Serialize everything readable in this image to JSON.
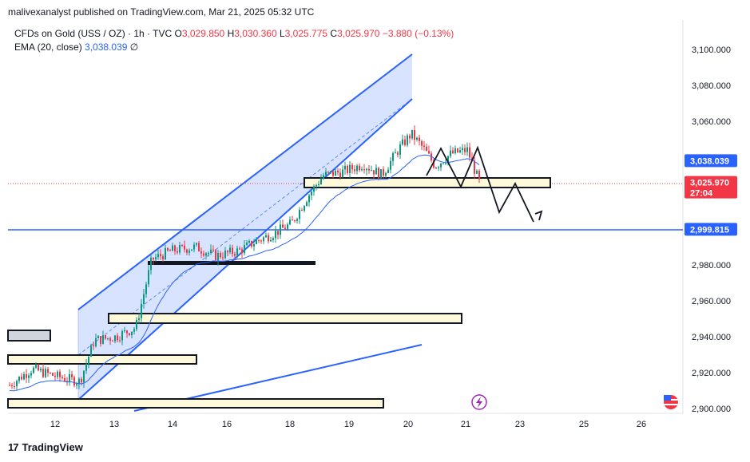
{
  "header": {
    "text": "malivexanalyst published on TradingView.com, Mar 21, 2025 05:32 UTC"
  },
  "legend": {
    "symbol": "CFDs on Gold (USS / OZ) · 1h · TVC",
    "open_label": "O",
    "open": "3,029.850",
    "high_label": "H",
    "high": "3,030.360",
    "low_label": "L",
    "low": "3,025.775",
    "close_label": "C",
    "close": "3,025.970",
    "change": "−3.880 (−0.13%)",
    "ema_label": "EMA (20, close)",
    "ema_value": "3,038.039",
    "ema_extra": "∅"
  },
  "footer": {
    "brand": "TradingView"
  },
  "colors": {
    "up": "#089981",
    "down": "#f23645",
    "ema": "#2962ff",
    "channel": "#2962ff",
    "zone_fill": "#fff9db",
    "zone_border": "#131722"
  },
  "chart_data": {
    "type": "candlestick",
    "title": "CFDs on Gold (USS / OZ) · 1h · TVC",
    "y_ticks": [
      "2,900.000",
      "2,920.000",
      "2,940.000",
      "2,960.000",
      "2,980.000",
      "3,000.000",
      "3,020.000",
      "3,040.000",
      "3,060.000",
      "3,080.000",
      "3,100.000"
    ],
    "y_tick_values": [
      2900,
      2920,
      2940,
      2960,
      2980,
      3000,
      3020,
      3040,
      3060,
      3080,
      3100
    ],
    "x_ticks": [
      "12",
      "13",
      "14",
      "16",
      "18",
      "19",
      "20",
      "21",
      "23",
      "25",
      "26"
    ],
    "ylim": [
      2900,
      3100
    ],
    "price_labels": [
      {
        "label": "3,038.039",
        "value": 3038.039,
        "color": "#2962ff"
      },
      {
        "label": "3,025.970",
        "value": 3025.97,
        "sub": "27:04",
        "color": "#f23645"
      },
      {
        "label": "2,999.815",
        "value": 2999.815,
        "color": "#2962ff"
      }
    ],
    "horizontal_line": 2999.815,
    "last_price": 3025.97,
    "series": [
      {
        "name": "EMA (20, close)",
        "last": 3038.039
      }
    ]
  }
}
